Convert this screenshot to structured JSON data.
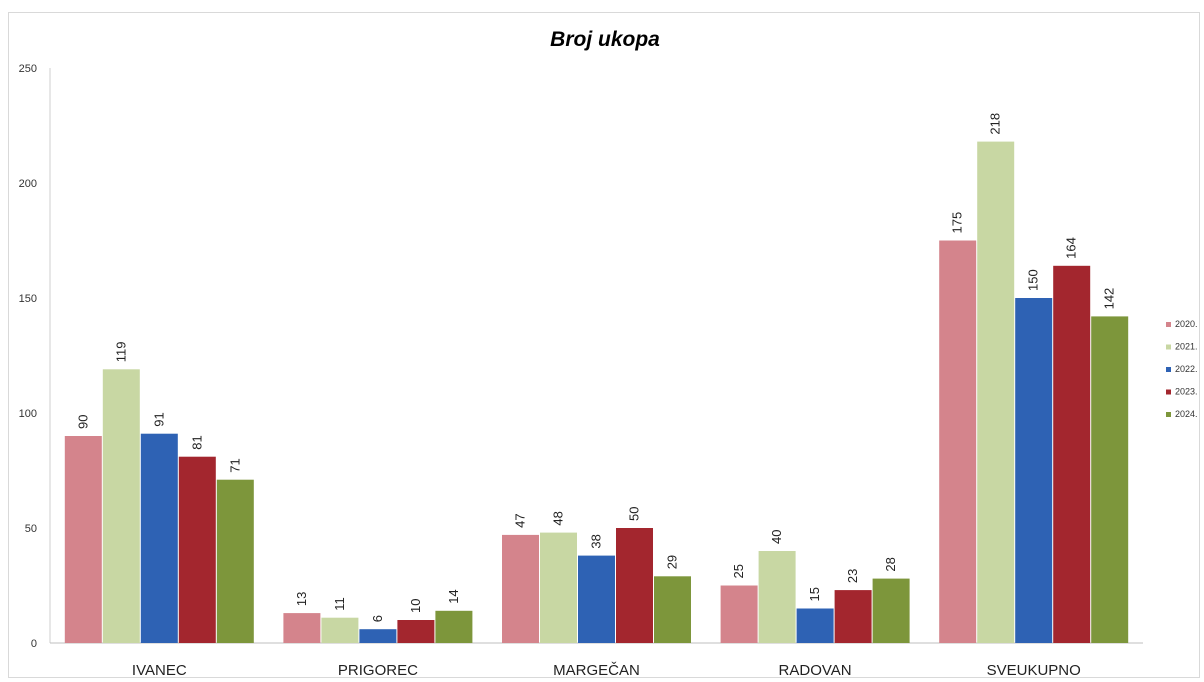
{
  "chart_data": {
    "type": "bar",
    "title": "Broj ukopa",
    "categories": [
      "IVANEC",
      "PRIGOREC",
      "MARGEČAN",
      "RADOVAN",
      "SVEUKUPNO"
    ],
    "series": [
      {
        "name": "2020.",
        "values": [
          90,
          13,
          47,
          25,
          175
        ],
        "color": "#d4848c"
      },
      {
        "name": "2021.",
        "values": [
          119,
          11,
          48,
          40,
          218
        ],
        "color": "#c8d7a3"
      },
      {
        "name": "2022.",
        "values": [
          91,
          6,
          38,
          15,
          150
        ],
        "color": "#2e62b4"
      },
      {
        "name": "2023.",
        "values": [
          81,
          10,
          50,
          23,
          164
        ],
        "color": "#a3262e"
      },
      {
        "name": "2024.",
        "values": [
          71,
          14,
          29,
          28,
          142
        ],
        "color": "#7d963b"
      }
    ],
    "yticks": [
      "0",
      "50",
      "100",
      "150",
      "200",
      "250"
    ],
    "ylim": [
      0,
      250
    ],
    "grid": false,
    "legend_position": "right"
  }
}
